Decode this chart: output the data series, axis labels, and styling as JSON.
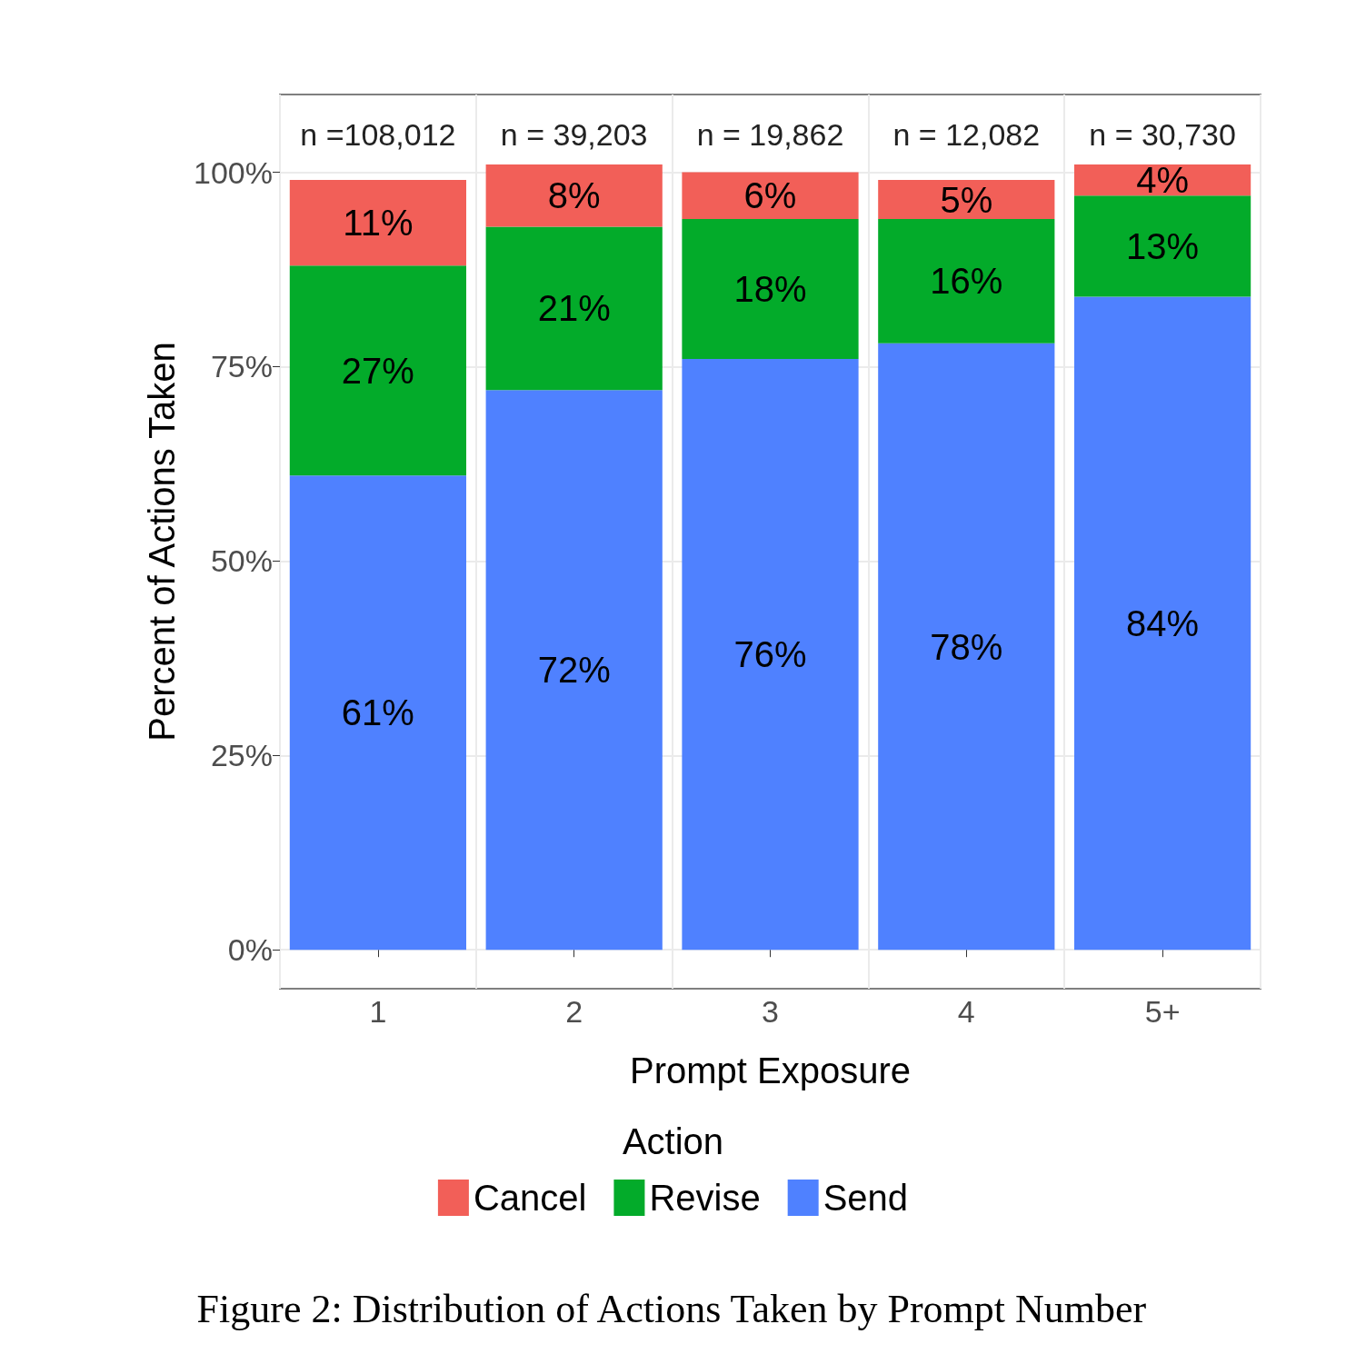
{
  "chart_data": {
    "type": "bar",
    "stacked": true,
    "xlabel": "Prompt Exposure",
    "ylabel": "Percent of Actions Taken",
    "legend_title": "Action",
    "legend": "bottom",
    "grid": true,
    "categories": [
      "1",
      "2",
      "3",
      "4",
      "5+"
    ],
    "ylim": [
      -5,
      110
    ],
    "yticks": [
      {
        "value": 0,
        "label": "0%"
      },
      {
        "value": 25,
        "label": "25%"
      },
      {
        "value": 50,
        "label": "50%"
      },
      {
        "value": 75,
        "label": "75%"
      },
      {
        "value": 100,
        "label": "100%"
      }
    ],
    "series": [
      {
        "name": "Send",
        "color": "#4f81ff",
        "values": [
          61,
          72,
          76,
          78,
          84
        ],
        "value_labels": [
          "61%",
          "72%",
          "76%",
          "78%",
          "84%"
        ]
      },
      {
        "name": "Revise",
        "color": "#03ab2a",
        "values": [
          27,
          21,
          18,
          16,
          13
        ],
        "value_labels": [
          "27%",
          "21%",
          "18%",
          "16%",
          "13%"
        ]
      },
      {
        "name": "Cancel",
        "color": "#f25f58",
        "values": [
          11,
          8,
          6,
          5,
          4
        ],
        "value_labels": [
          "11%",
          "8%",
          "6%",
          "5%",
          "4%"
        ]
      }
    ],
    "annotations": [
      "n =108,012",
      "n = 39,203",
      "n = 19,862",
      "n = 12,082",
      "n = 30,730",
      "Figure 2: Distribution of Actions Taken by Prompt Number"
    ]
  }
}
